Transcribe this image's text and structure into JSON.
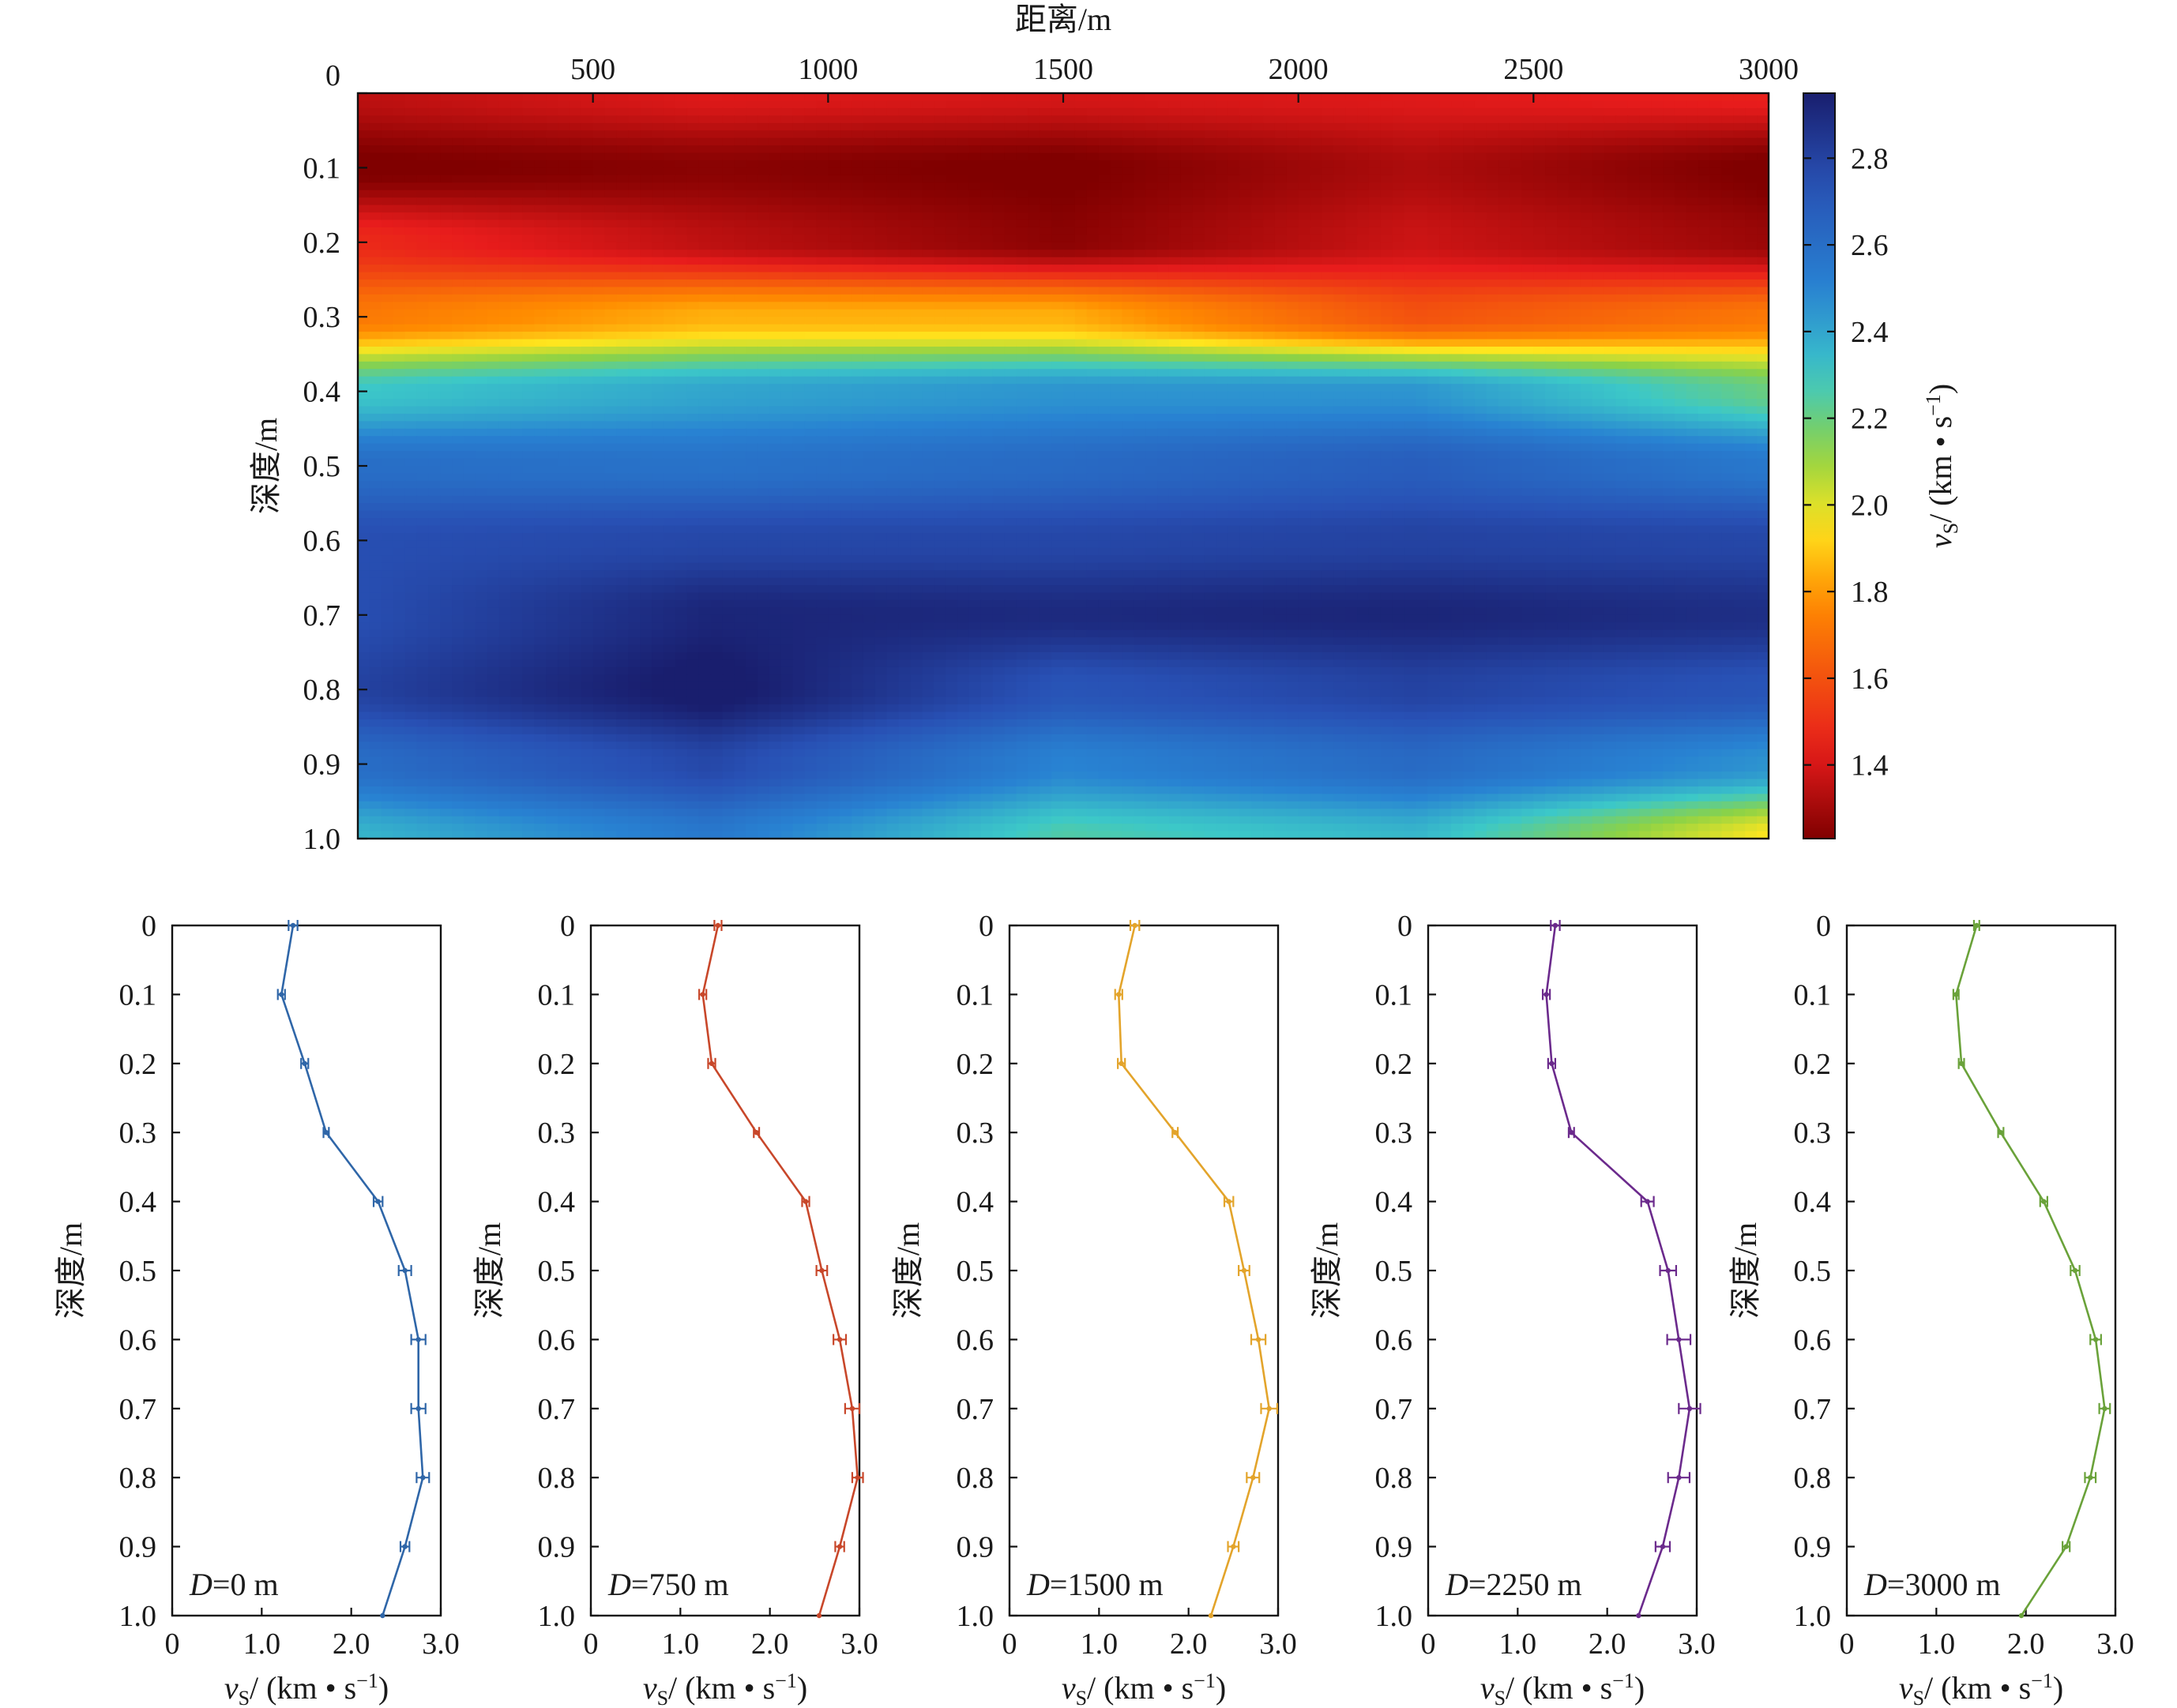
{
  "chart_data": [
    {
      "type": "heatmap",
      "title": "",
      "xlabel": "距离/m",
      "ylabel": "深度/m",
      "x_axis_position": "top",
      "xlim": [
        0,
        3000
      ],
      "ylim": [
        0,
        1.0
      ],
      "y_inverted": true,
      "xticks": [
        500,
        1000,
        1500,
        2000,
        2500,
        3000
      ],
      "yticks": [
        0,
        0.1,
        0.2,
        0.3,
        0.4,
        0.5,
        0.6,
        0.7,
        0.8,
        0.9,
        1.0
      ],
      "ytick_labels": [
        "0",
        "0.1",
        "0.2",
        "0.3",
        "0.4",
        "0.5",
        "0.6",
        "0.7",
        "0.8",
        "0.9",
        "1.0"
      ],
      "colorbar": {
        "label_symbol": "v",
        "label_sub": "S",
        "label_rest": "/ (km • s",
        "label_sup": "−1",
        "label_close": ")",
        "range": [
          1.23,
          2.95
        ],
        "ticks": [
          1.4,
          1.6,
          1.8,
          2.0,
          2.2,
          2.4,
          2.6,
          2.8
        ],
        "tick_labels": [
          "1.4",
          "1.6",
          "1.8",
          "2.0",
          "2.2",
          "2.4",
          "2.6",
          "2.8"
        ],
        "colormap": "jet-reversed",
        "placement": "right"
      },
      "grid": false,
      "note_data_source": "interpolated between the five depth profiles below"
    },
    {
      "type": "line",
      "annotation": {
        "italic": "D",
        "rest": "=0 m"
      },
      "xlabel": "vS/(km•s−1)",
      "ylabel": "深度/m",
      "xlim": [
        0,
        3.0
      ],
      "ylim": [
        0,
        1.0
      ],
      "y_inverted": true,
      "xticks": [
        0,
        1.0,
        2.0,
        3.0
      ],
      "xtick_labels": [
        "0",
        "1.0",
        "2.0",
        "3.0"
      ],
      "yticks": [
        0,
        0.1,
        0.2,
        0.3,
        0.4,
        0.5,
        0.6,
        0.7,
        0.8,
        0.9,
        1.0
      ],
      "ytick_labels": [
        "0",
        "0.1",
        "0.2",
        "0.3",
        "0.4",
        "0.5",
        "0.6",
        "0.7",
        "0.8",
        "0.9",
        "1.0"
      ],
      "color": "#2f66a8",
      "depth": [
        0,
        0.1,
        0.2,
        0.3,
        0.4,
        0.5,
        0.6,
        0.7,
        0.8,
        0.9,
        1.0
      ],
      "vs": [
        1.35,
        1.22,
        1.48,
        1.72,
        2.3,
        2.6,
        2.75,
        2.75,
        2.8,
        2.6,
        2.35
      ],
      "err": [
        0.05,
        0.04,
        0.04,
        0.03,
        0.05,
        0.07,
        0.08,
        0.08,
        0.07,
        0.05,
        0.0
      ]
    },
    {
      "type": "line",
      "annotation": {
        "italic": "D",
        "rest": "=750 m"
      },
      "xlabel": "vS/(km•s−1)",
      "ylabel": "深度/m",
      "xlim": [
        0,
        3.0
      ],
      "ylim": [
        0,
        1.0
      ],
      "y_inverted": true,
      "xticks": [
        0,
        1.0,
        2.0,
        3.0
      ],
      "xtick_labels": [
        "0",
        "1.0",
        "2.0",
        "3.0"
      ],
      "yticks": [
        0,
        0.1,
        0.2,
        0.3,
        0.4,
        0.5,
        0.6,
        0.7,
        0.8,
        0.9,
        1.0
      ],
      "ytick_labels": [
        "0",
        "0.1",
        "0.2",
        "0.3",
        "0.4",
        "0.5",
        "0.6",
        "0.7",
        "0.8",
        "0.9",
        "1.0"
      ],
      "color": "#c8472a",
      "depth": [
        0,
        0.1,
        0.2,
        0.3,
        0.4,
        0.5,
        0.6,
        0.7,
        0.8,
        0.9,
        1.0
      ],
      "vs": [
        1.42,
        1.25,
        1.35,
        1.85,
        2.4,
        2.58,
        2.78,
        2.92,
        2.98,
        2.78,
        2.55
      ],
      "err": [
        0.04,
        0.04,
        0.04,
        0.03,
        0.04,
        0.06,
        0.07,
        0.08,
        0.06,
        0.05,
        0.0
      ]
    },
    {
      "type": "line",
      "annotation": {
        "italic": "D",
        "rest": "=1500 m"
      },
      "xlabel": "vS/(km•s−1)",
      "ylabel": "深度/m",
      "xlim": [
        0,
        3.0
      ],
      "ylim": [
        0,
        1.0
      ],
      "y_inverted": true,
      "xticks": [
        0,
        1.0,
        2.0,
        3.0
      ],
      "xtick_labels": [
        "0",
        "1.0",
        "2.0",
        "3.0"
      ],
      "yticks": [
        0,
        0.1,
        0.2,
        0.3,
        0.4,
        0.5,
        0.6,
        0.7,
        0.8,
        0.9,
        1.0
      ],
      "ytick_labels": [
        "0",
        "0.1",
        "0.2",
        "0.3",
        "0.4",
        "0.5",
        "0.6",
        "0.7",
        "0.8",
        "0.9",
        "1.0"
      ],
      "color": "#e3a42b",
      "depth": [
        0,
        0.1,
        0.2,
        0.3,
        0.4,
        0.5,
        0.6,
        0.7,
        0.8,
        0.9,
        1.0
      ],
      "vs": [
        1.4,
        1.22,
        1.25,
        1.85,
        2.45,
        2.62,
        2.78,
        2.9,
        2.72,
        2.5,
        2.25
      ],
      "err": [
        0.05,
        0.04,
        0.04,
        0.03,
        0.05,
        0.06,
        0.08,
        0.09,
        0.07,
        0.06,
        0.0
      ]
    },
    {
      "type": "line",
      "annotation": {
        "italic": "D",
        "rest": "=2250 m"
      },
      "xlabel": "vS/(km•s−1)",
      "ylabel": "深度/m",
      "xlim": [
        0,
        3.0
      ],
      "ylim": [
        0,
        1.0
      ],
      "y_inverted": true,
      "xticks": [
        0,
        1.0,
        2.0,
        3.0
      ],
      "xtick_labels": [
        "0",
        "1.0",
        "2.0",
        "3.0"
      ],
      "yticks": [
        0,
        0.1,
        0.2,
        0.3,
        0.4,
        0.5,
        0.6,
        0.7,
        0.8,
        0.9,
        1.0
      ],
      "ytick_labels": [
        "0",
        "0.1",
        "0.2",
        "0.3",
        "0.4",
        "0.5",
        "0.6",
        "0.7",
        "0.8",
        "0.9",
        "1.0"
      ],
      "color": "#6b2a8c",
      "depth": [
        0,
        0.1,
        0.2,
        0.3,
        0.4,
        0.5,
        0.6,
        0.7,
        0.8,
        0.9,
        1.0
      ],
      "vs": [
        1.42,
        1.32,
        1.38,
        1.6,
        2.45,
        2.68,
        2.8,
        2.92,
        2.8,
        2.62,
        2.35
      ],
      "err": [
        0.05,
        0.04,
        0.04,
        0.03,
        0.07,
        0.09,
        0.13,
        0.12,
        0.12,
        0.08,
        0.0
      ]
    },
    {
      "type": "line",
      "annotation": {
        "italic": "D",
        "rest": "=3000 m"
      },
      "xlabel": "vS/(km•s−1)",
      "ylabel": "深度/m",
      "xlim": [
        0,
        3.0
      ],
      "ylim": [
        0,
        1.0
      ],
      "y_inverted": true,
      "xticks": [
        0,
        1.0,
        2.0,
        3.0
      ],
      "xtick_labels": [
        "0",
        "1.0",
        "2.0",
        "3.0"
      ],
      "yticks": [
        0,
        0.1,
        0.2,
        0.3,
        0.4,
        0.5,
        0.6,
        0.7,
        0.8,
        0.9,
        1.0
      ],
      "ytick_labels": [
        "0",
        "0.1",
        "0.2",
        "0.3",
        "0.4",
        "0.5",
        "0.6",
        "0.7",
        "0.8",
        "0.9",
        "1.0"
      ],
      "color": "#6aa23a",
      "depth": [
        0,
        0.1,
        0.2,
        0.3,
        0.4,
        0.5,
        0.6,
        0.7,
        0.8,
        0.9,
        1.0
      ],
      "vs": [
        1.45,
        1.22,
        1.28,
        1.72,
        2.2,
        2.55,
        2.78,
        2.88,
        2.72,
        2.45,
        1.95
      ],
      "err": [
        0.03,
        0.03,
        0.03,
        0.03,
        0.04,
        0.05,
        0.06,
        0.06,
        0.06,
        0.04,
        0.0
      ]
    }
  ]
}
